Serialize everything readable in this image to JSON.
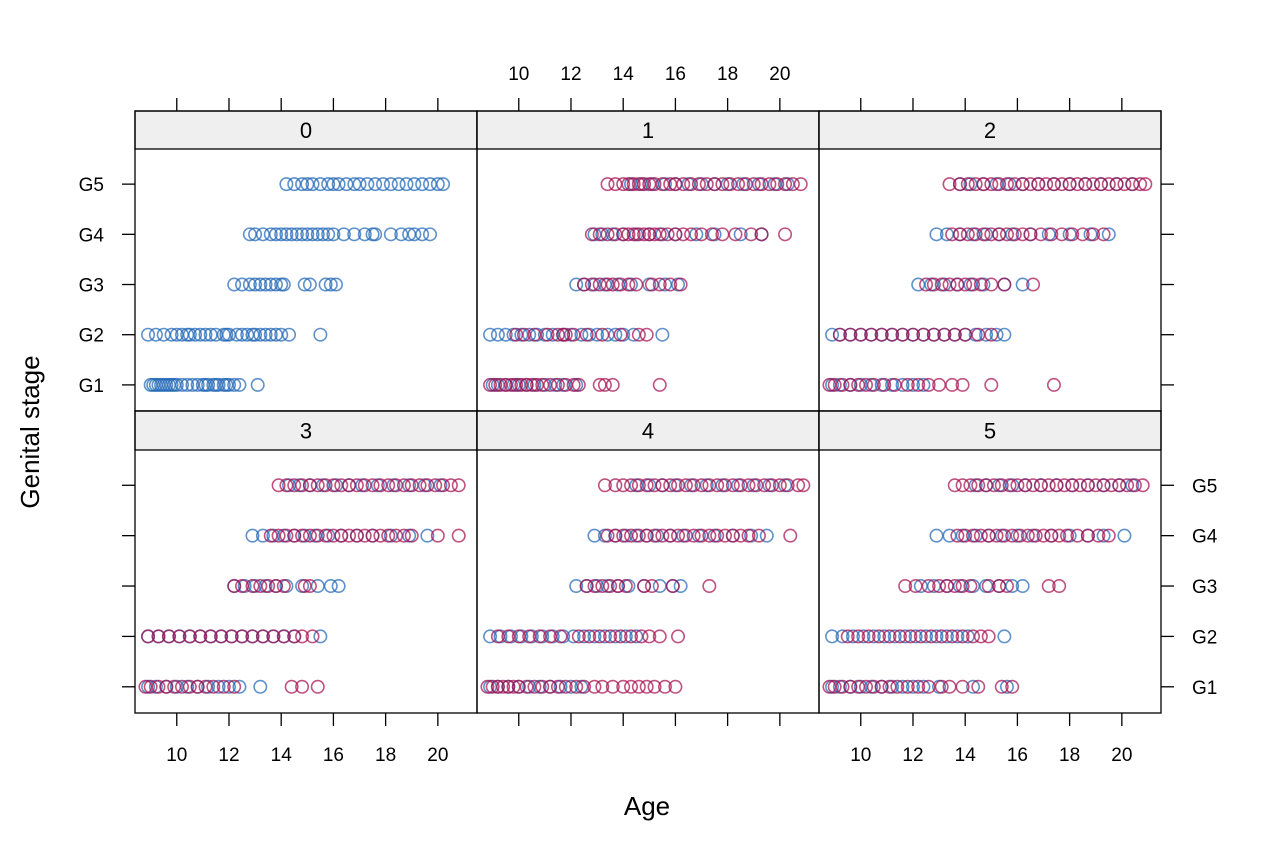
{
  "chart_data": {
    "type": "scatter",
    "layout": "lattice 3x2",
    "xlabel": "Age",
    "ylabel": "Genital stage",
    "xlim": [
      8.4,
      21.5
    ],
    "x_ticks": [
      10,
      12,
      14,
      16,
      18,
      20
    ],
    "y_categories": [
      "G1",
      "G2",
      "G3",
      "G4",
      "G5"
    ],
    "colors": {
      "group_a": "#2166b5",
      "group_b": "#a50f4f",
      "strip": "#efefef"
    },
    "panels": [
      {
        "label": "0",
        "group_a": {
          "G1": [
            9.0,
            9.1,
            9.2,
            9.3,
            9.4,
            9.5,
            9.6,
            9.7,
            9.8,
            9.9,
            10.0,
            10.2,
            10.4,
            10.6,
            10.8,
            11.0,
            11.1,
            11.2,
            11.4,
            11.5,
            11.6,
            11.8,
            11.9,
            12.0,
            12.2,
            12.4,
            13.1
          ],
          "G2": [
            8.9,
            9.2,
            9.5,
            9.8,
            10.0,
            10.2,
            10.4,
            10.5,
            10.7,
            10.9,
            11.1,
            11.3,
            11.5,
            11.8,
            11.9,
            12.0,
            12.3,
            12.5,
            12.7,
            12.9,
            13.0,
            13.2,
            13.4,
            13.6,
            13.8,
            14.0,
            14.3,
            15.5
          ],
          "G3": [
            12.2,
            12.5,
            12.8,
            13.0,
            13.2,
            13.4,
            13.6,
            13.8,
            14.0,
            14.1,
            14.9,
            15.1,
            15.7,
            15.9,
            16.1
          ],
          "G4": [
            12.8,
            13.0,
            13.3,
            13.6,
            13.8,
            14.0,
            14.2,
            14.4,
            14.6,
            14.8,
            15.0,
            15.2,
            15.4,
            15.6,
            15.8,
            16.0,
            16.4,
            16.8,
            17.2,
            17.5,
            17.6,
            18.2,
            18.6,
            18.9,
            19.1,
            19.4,
            19.7
          ],
          "G5": [
            14.2,
            14.5,
            14.8,
            15.0,
            15.2,
            15.5,
            15.8,
            16.0,
            16.2,
            16.5,
            16.8,
            17.0,
            17.3,
            17.6,
            17.9,
            18.2,
            18.5,
            18.8,
            19.1,
            19.4,
            19.7,
            20.0,
            20.2
          ]
        },
        "group_b": {
          "G1": [],
          "G2": [],
          "G3": [],
          "G4": [],
          "G5": []
        }
      },
      {
        "label": "1",
        "group_a": {
          "G1": [
            9.0,
            9.2,
            9.5,
            9.8,
            10.0,
            10.3,
            10.6,
            11.0,
            11.4,
            11.7,
            12.2
          ],
          "G2": [
            8.9,
            9.2,
            9.5,
            9.8,
            10.1,
            10.4,
            10.7,
            11.0,
            11.3,
            11.7,
            12.0,
            12.4,
            12.7,
            13.0,
            13.4,
            13.7,
            14.0,
            14.4,
            15.5
          ],
          "G3": [
            12.2,
            12.5,
            12.9,
            13.3,
            13.8,
            14.3,
            15.0,
            15.6,
            16.1
          ],
          "G4": [
            12.9,
            13.2,
            13.6,
            14.0,
            14.5,
            15.0,
            15.5,
            16.0,
            16.8,
            17.5,
            18.5,
            19.3
          ],
          "G5": [
            14.3,
            14.7,
            15.1,
            15.6,
            16.0,
            16.5,
            17.0,
            17.5,
            18.0,
            18.6,
            19.2,
            19.8,
            20.3
          ]
        },
        "group_b": {
          "G1": [
            8.9,
            9.1,
            9.3,
            9.5,
            9.7,
            9.9,
            10.1,
            10.3,
            10.5,
            10.7,
            10.9,
            11.2,
            11.5,
            11.8,
            12.1,
            12.3,
            13.1,
            13.3,
            13.6,
            15.4
          ],
          "G2": [
            9.9,
            10.2,
            10.6,
            11.1,
            11.5,
            11.7,
            11.8,
            12.1,
            12.6,
            13.2,
            13.9,
            14.6,
            14.9
          ],
          "G3": [
            12.5,
            12.8,
            13.1,
            13.4,
            13.6,
            13.9,
            14.2,
            14.5,
            15.1,
            15.4,
            15.8,
            16.2
          ],
          "G4": [
            12.8,
            13.1,
            13.4,
            13.7,
            14.0,
            14.2,
            14.4,
            14.6,
            14.8,
            15.0,
            15.2,
            15.4,
            15.7,
            16.0,
            16.3,
            16.6,
            17.0,
            17.4,
            17.8,
            18.3,
            18.9,
            19.3,
            20.2
          ],
          "G5": [
            13.4,
            13.7,
            14.0,
            14.2,
            14.4,
            14.6,
            14.8,
            15.0,
            15.2,
            15.5,
            15.8,
            16.0,
            16.3,
            16.6,
            16.9,
            17.2,
            17.5,
            17.8,
            18.1,
            18.4,
            18.7,
            19.0,
            19.3,
            19.6,
            19.9,
            20.2,
            20.5,
            20.8
          ]
        }
      },
      {
        "label": "2",
        "group_a": {
          "G1": [
            8.9,
            9.2,
            9.6,
            10.0,
            10.4,
            10.8,
            11.2,
            11.6,
            12.0,
            12.4
          ],
          "G2": [
            8.9,
            9.2,
            9.6,
            10.0,
            10.4,
            10.8,
            11.2,
            11.6,
            12.0,
            12.4,
            12.8,
            13.2,
            13.6,
            14.0,
            14.4,
            14.8,
            15.2,
            15.5
          ],
          "G3": [
            12.2,
            12.7,
            13.2,
            13.7,
            14.2,
            14.7,
            15.5,
            16.2
          ],
          "G4": [
            12.9,
            13.3,
            13.8,
            14.3,
            14.8,
            15.3,
            15.8,
            16.5,
            17.2,
            18.0,
            18.8,
            19.5
          ],
          "G5": [
            13.8,
            14.2,
            14.7,
            15.2,
            15.7,
            16.2,
            16.8,
            17.4,
            18.0,
            18.6,
            19.2,
            19.8,
            20.4
          ]
        },
        "group_b": {
          "G1": [
            8.8,
            9.0,
            9.3,
            9.6,
            9.9,
            10.2,
            10.5,
            10.9,
            11.3,
            11.8,
            12.2,
            12.6,
            13.0,
            13.5,
            13.9,
            15.0,
            17.4
          ],
          "G2": [
            9.2,
            9.6,
            10.0,
            10.4,
            10.8,
            11.2,
            11.6,
            12.0,
            12.4,
            12.8,
            13.2,
            13.6,
            14.0,
            14.5,
            15.0
          ],
          "G3": [
            12.5,
            12.8,
            13.1,
            13.4,
            13.7,
            14.0,
            14.3,
            14.6,
            15.0,
            15.5,
            16.6
          ],
          "G4": [
            13.5,
            13.8,
            14.1,
            14.4,
            14.7,
            15.0,
            15.3,
            15.6,
            15.9,
            16.2,
            16.5,
            16.9,
            17.3,
            17.7,
            18.1,
            18.5,
            18.9,
            19.3
          ],
          "G5": [
            13.4,
            13.8,
            14.1,
            14.4,
            14.7,
            15.0,
            15.3,
            15.6,
            15.9,
            16.2,
            16.5,
            16.8,
            17.1,
            17.4,
            17.7,
            18.0,
            18.3,
            18.6,
            18.9,
            19.2,
            19.5,
            19.8,
            20.1,
            20.4,
            20.7,
            20.9
          ]
        }
      },
      {
        "label": "3",
        "group_a": {
          "G1": [
            8.9,
            9.2,
            9.6,
            10.0,
            10.4,
            10.8,
            11.2,
            11.6,
            12.0,
            12.4,
            13.2
          ],
          "G2": [
            8.9,
            9.3,
            9.7,
            10.1,
            10.5,
            10.9,
            11.3,
            11.7,
            12.1,
            12.5,
            12.9,
            13.3,
            13.7,
            14.1,
            14.5,
            15.5
          ],
          "G3": [
            12.2,
            12.6,
            13.0,
            13.4,
            13.8,
            14.2,
            14.8,
            15.4,
            15.9,
            16.2
          ],
          "G4": [
            12.9,
            13.3,
            13.7,
            14.1,
            14.5,
            14.9,
            15.3,
            15.8,
            16.3,
            16.9,
            17.5,
            18.2,
            18.9,
            19.6
          ],
          "G5": [
            14.3,
            14.7,
            15.1,
            15.6,
            16.1,
            16.6,
            17.1,
            17.7,
            18.3,
            18.9,
            19.5,
            20.1
          ]
        },
        "group_b": {
          "G1": [
            8.8,
            9.0,
            9.3,
            9.6,
            9.9,
            10.2,
            10.5,
            10.8,
            11.1,
            11.4,
            11.8,
            12.2,
            14.4,
            14.8,
            15.4
          ],
          "G2": [
            8.9,
            9.3,
            9.7,
            10.1,
            10.5,
            10.9,
            11.3,
            11.7,
            12.1,
            12.5,
            12.9,
            13.3,
            13.7,
            14.1,
            14.5,
            14.8,
            15.2
          ],
          "G3": [
            12.2,
            12.5,
            12.9,
            13.2,
            13.5,
            13.8,
            14.1,
            14.9,
            15.1
          ],
          "G4": [
            13.6,
            13.9,
            14.2,
            14.5,
            14.8,
            15.1,
            15.4,
            15.7,
            16.0,
            16.3,
            16.6,
            16.9,
            17.2,
            17.5,
            17.8,
            18.1,
            18.4,
            18.7,
            19.0,
            20.0,
            20.8
          ],
          "G5": [
            13.9,
            14.2,
            14.5,
            14.8,
            15.1,
            15.4,
            15.7,
            16.0,
            16.3,
            16.6,
            16.9,
            17.2,
            17.5,
            17.8,
            18.1,
            18.4,
            18.7,
            19.0,
            19.3,
            19.6,
            19.9,
            20.2,
            20.5,
            20.8
          ]
        }
      },
      {
        "label": "4",
        "group_a": {
          "G1": [
            8.9,
            9.2,
            9.6,
            10.0,
            10.4,
            10.8,
            11.2,
            11.6,
            12.0,
            12.4
          ],
          "G2": [
            8.9,
            9.3,
            9.7,
            10.1,
            10.5,
            10.9,
            11.3,
            11.7,
            12.1,
            12.5,
            12.9,
            13.3,
            13.7,
            14.1,
            14.5
          ],
          "G3": [
            12.2,
            12.6,
            13.0,
            13.4,
            13.8,
            14.2,
            14.8,
            15.4,
            15.9,
            16.2
          ],
          "G4": [
            12.9,
            13.3,
            13.7,
            14.1,
            14.5,
            14.9,
            15.3,
            15.8,
            16.3,
            16.9,
            17.5,
            18.2,
            18.9,
            19.5
          ],
          "G5": [
            14.5,
            15.0,
            15.5,
            16.0,
            16.6,
            17.2,
            17.8,
            18.4,
            19.0,
            19.6,
            20.2
          ]
        },
        "group_b": {
          "G1": [
            8.8,
            9.0,
            9.2,
            9.4,
            9.6,
            9.8,
            10.0,
            10.3,
            10.6,
            10.9,
            11.2,
            11.5,
            11.8,
            12.2,
            12.5,
            12.9,
            13.2,
            13.6,
            14.0,
            14.3,
            14.6,
            14.9,
            15.2,
            15.6,
            16.0
          ],
          "G2": [
            9.2,
            9.6,
            10.0,
            10.4,
            10.8,
            11.2,
            11.6,
            12.3,
            12.7,
            13.1,
            13.5,
            13.9,
            14.3,
            14.7,
            15.0,
            15.4,
            16.1
          ],
          "G3": [
            12.6,
            12.9,
            13.2,
            13.5,
            13.8,
            14.1,
            14.8,
            15.1,
            15.9,
            17.3
          ],
          "G4": [
            13.4,
            13.7,
            14.0,
            14.3,
            14.6,
            14.9,
            15.2,
            15.5,
            15.8,
            16.1,
            16.4,
            16.7,
            17.0,
            17.3,
            17.6,
            17.9,
            18.2,
            18.5,
            18.8,
            19.2,
            20.4
          ],
          "G5": [
            13.3,
            13.7,
            14.0,
            14.3,
            14.6,
            14.9,
            15.2,
            15.5,
            15.8,
            16.1,
            16.4,
            16.7,
            17.0,
            17.3,
            17.6,
            17.9,
            18.2,
            18.5,
            18.8,
            19.1,
            19.4,
            19.7,
            20.0,
            20.3,
            20.7,
            20.9
          ]
        }
      },
      {
        "label": "5",
        "group_a": {
          "G1": [
            8.9,
            9.2,
            9.6,
            10.0,
            10.4,
            10.8,
            11.2,
            11.6,
            12.0,
            12.4,
            13.0,
            14.3,
            15.6
          ],
          "G2": [
            8.9,
            9.3,
            9.7,
            10.1,
            10.5,
            10.9,
            11.3,
            11.7,
            12.1,
            12.5,
            12.9,
            13.3,
            13.7,
            14.1,
            15.5
          ],
          "G3": [
            12.3,
            12.8,
            13.3,
            13.8,
            14.3,
            14.8,
            15.3,
            15.8,
            16.2
          ],
          "G4": [
            12.9,
            13.4,
            13.9,
            14.4,
            14.9,
            15.4,
            16.0,
            16.6,
            17.3,
            18.0,
            18.7,
            19.3,
            20.1
          ],
          "G5": [
            14.4,
            14.8,
            15.3,
            15.8,
            16.3,
            16.9,
            17.5,
            18.1,
            18.7,
            19.3,
            19.9,
            20.4
          ]
        },
        "group_b": {
          "G1": [
            8.8,
            9.0,
            9.3,
            9.6,
            9.9,
            10.2,
            10.5,
            10.8,
            11.1,
            11.4,
            11.8,
            12.2,
            12.6,
            13.1,
            13.4,
            13.9,
            14.5,
            15.4,
            15.8
          ],
          "G2": [
            9.5,
            9.9,
            10.3,
            10.7,
            11.1,
            11.5,
            11.9,
            12.3,
            12.7,
            13.1,
            13.5,
            13.9,
            14.3,
            14.6,
            14.9
          ],
          "G3": [
            11.7,
            12.1,
            12.6,
            13.0,
            13.3,
            13.6,
            13.9,
            14.2,
            14.9,
            15.3,
            15.6,
            17.2,
            17.6
          ],
          "G4": [
            13.7,
            14.0,
            14.3,
            14.6,
            14.9,
            15.2,
            15.5,
            15.8,
            16.1,
            16.4,
            16.7,
            17.0,
            17.3,
            17.6,
            17.9,
            18.3,
            18.7,
            19.1,
            19.5
          ],
          "G5": [
            13.6,
            13.9,
            14.2,
            14.5,
            14.8,
            15.1,
            15.4,
            15.7,
            16.0,
            16.3,
            16.6,
            16.9,
            17.2,
            17.5,
            17.8,
            18.1,
            18.4,
            18.7,
            19.0,
            19.3,
            19.6,
            19.9,
            20.2,
            20.5,
            20.8
          ]
        }
      }
    ]
  }
}
